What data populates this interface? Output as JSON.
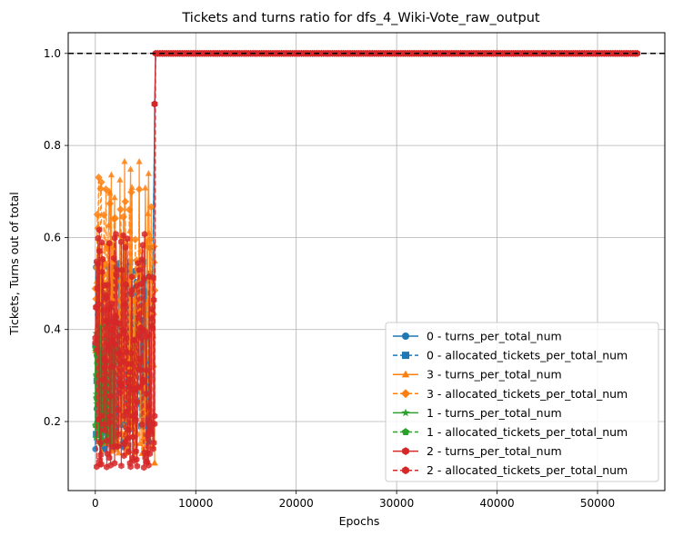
{
  "chart_data": {
    "type": "line",
    "title": "Tickets and turns ratio for dfs_4_Wiki-Vote_raw_output",
    "xlabel": "Epochs",
    "ylabel": "Tickets, Turns out of total",
    "xlim": [
      -2700,
      56700
    ],
    "ylim": [
      0.05,
      1.045
    ],
    "x_ticks": [
      0,
      10000,
      20000,
      30000,
      40000,
      50000
    ],
    "y_ticks": [
      0.2,
      0.4,
      0.6,
      0.8,
      1.0
    ],
    "x_tick_labels": [
      "0",
      "10000",
      "20000",
      "30000",
      "40000",
      "50000"
    ],
    "y_tick_labels": [
      "0.2",
      "0.4",
      "0.6",
      "0.8",
      "1.0"
    ],
    "grid": true,
    "legend_position": "lower-right",
    "reference_line": {
      "y": 1.0,
      "style": "dashed",
      "color": "#000000"
    },
    "series": [
      {
        "name": "0 - turns_per_total_num",
        "color": "#1f77b4",
        "marker": "circle",
        "linestyle": "solid",
        "active": {
          "x_start": 0,
          "x_end": 5500,
          "y_min": 0.14,
          "y_max": 0.58
        },
        "final_points": [
          [
            6000,
            1.0
          ],
          [
            54000,
            1.0
          ]
        ]
      },
      {
        "name": "0 - allocated_tickets_per_total_num",
        "color": "#1f77b4",
        "marker": "square",
        "linestyle": "dashed",
        "active": {
          "x_start": 0,
          "x_end": 5500,
          "y_min": 0.14,
          "y_max": 0.55
        },
        "final_points": [
          [
            6000,
            1.0
          ],
          [
            54000,
            1.0
          ]
        ]
      },
      {
        "name": "3 - turns_per_total_num",
        "color": "#ff7f0e",
        "marker": "triangle",
        "linestyle": "solid",
        "active": {
          "x_start": 0,
          "x_end": 5900,
          "y_min": 0.13,
          "y_max": 0.77
        },
        "final_points": [
          [
            5900,
            0.11
          ]
        ]
      },
      {
        "name": "3 - allocated_tickets_per_total_num",
        "color": "#ff7f0e",
        "marker": "diamond",
        "linestyle": "dashed",
        "active": {
          "x_start": 0,
          "x_end": 5900,
          "y_min": 0.13,
          "y_max": 0.74
        },
        "final_points": []
      },
      {
        "name": "1 - turns_per_total_num",
        "color": "#2ca02c",
        "marker": "star",
        "linestyle": "solid",
        "active": {
          "x_start": 0,
          "x_end": 2000,
          "y_min": 0.15,
          "y_max": 0.42
        },
        "final_points": []
      },
      {
        "name": "1 - allocated_tickets_per_total_num",
        "color": "#2ca02c",
        "marker": "pentagon",
        "linestyle": "dashed",
        "active": {
          "x_start": 0,
          "x_end": 2000,
          "y_min": 0.15,
          "y_max": 0.4
        },
        "final_points": []
      },
      {
        "name": "2 - turns_per_total_num",
        "color": "#d62728",
        "marker": "hexagon",
        "linestyle": "solid",
        "active": {
          "x_start": 0,
          "x_end": 5900,
          "y_min": 0.1,
          "y_max": 0.62
        },
        "final_points": [
          [
            5900,
            0.89
          ],
          [
            6000,
            1.0
          ],
          [
            54000,
            1.0
          ]
        ]
      },
      {
        "name": "2 - allocated_tickets_per_total_num",
        "color": "#d62728",
        "marker": "hexagon",
        "linestyle": "dashed",
        "active": {
          "x_start": 0,
          "x_end": 5900,
          "y_min": 0.1,
          "y_max": 0.6
        },
        "final_points": [
          [
            6000,
            1.0
          ],
          [
            54000,
            1.0
          ]
        ]
      }
    ]
  }
}
